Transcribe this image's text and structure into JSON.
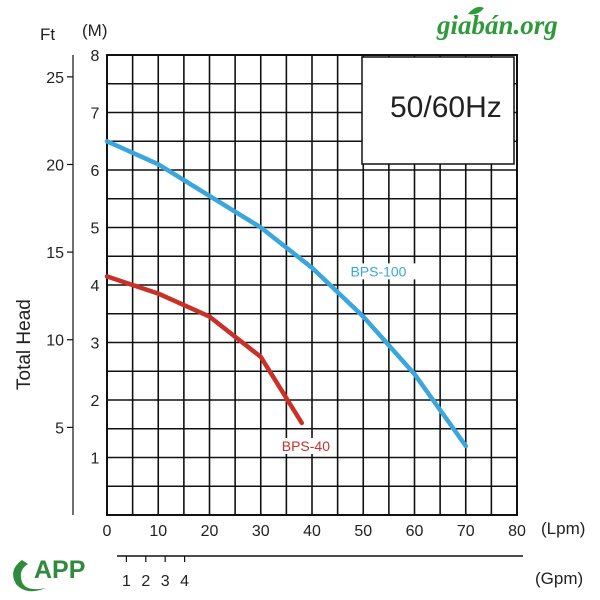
{
  "watermark": {
    "text": "giabán.org"
  },
  "logo": {
    "text": "APP",
    "color": "#2f8a3c"
  },
  "chart_data": {
    "type": "line",
    "frequency_label": "50/60Hz",
    "ylabel": "Total Head",
    "y_left_unit": "Ft",
    "y_right_unit": "(M)",
    "x_top_unit": "(Lpm)",
    "x_bottom_unit": "(Gpm)",
    "xlim": [
      0,
      80
    ],
    "ylim": [
      0,
      8
    ],
    "x_ticks": [
      "0",
      "10",
      "20",
      "30",
      "40",
      "50",
      "60",
      "70",
      "80"
    ],
    "y_ticks_m": [
      "1",
      "2",
      "3",
      "4",
      "5",
      "6",
      "7",
      "8"
    ],
    "y_ticks_ft": [
      "5",
      "10",
      "15",
      "20",
      "25"
    ],
    "gpm_ticks": [
      "1",
      "2",
      "3",
      "4"
    ],
    "grid": true,
    "series": [
      {
        "name": "BPS-100",
        "color": "#3aa6dc",
        "x": [
          0,
          10,
          20,
          30,
          40,
          50,
          60,
          70
        ],
        "y": [
          6.5,
          6.1,
          5.55,
          5.0,
          4.3,
          3.45,
          2.45,
          1.2
        ]
      },
      {
        "name": "BPS-40",
        "color": "#c83028",
        "x": [
          0,
          10,
          20,
          30,
          38
        ],
        "y": [
          4.15,
          3.85,
          3.45,
          2.75,
          1.6
        ]
      }
    ]
  }
}
